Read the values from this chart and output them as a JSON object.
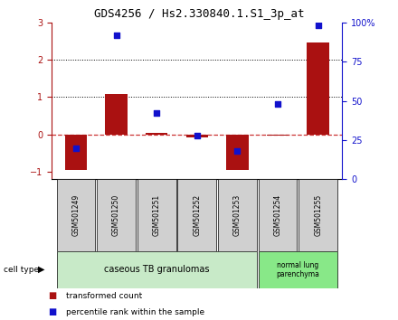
{
  "title": "GDS4256 / Hs2.330840.1.S1_3p_at",
  "samples": [
    "GSM501249",
    "GSM501250",
    "GSM501251",
    "GSM501252",
    "GSM501253",
    "GSM501254",
    "GSM501255"
  ],
  "transformed_count": [
    -0.95,
    1.08,
    0.04,
    -0.08,
    -0.95,
    -0.04,
    2.45
  ],
  "percentile_rank": [
    20,
    92,
    42,
    28,
    18,
    48,
    98
  ],
  "group1_indices": [
    0,
    1,
    2,
    3,
    4
  ],
  "group2_indices": [
    5,
    6
  ],
  "group1_label": "caseous TB granulomas",
  "group2_label": "normal lung\nparenchyma",
  "cell_type_label": "cell type",
  "ylim_left": [
    -1.2,
    3.0
  ],
  "ylim_right": [
    0,
    100
  ],
  "yticks_left": [
    -1,
    0,
    1,
    2,
    3
  ],
  "yticks_right": [
    0,
    25,
    50,
    75,
    100
  ],
  "ytick_right_labels": [
    "0",
    "25",
    "50",
    "75",
    "100%"
  ],
  "hlines_y": [
    1.0,
    2.0
  ],
  "zero_line_color": "#cc3333",
  "bar_color": "#aa1111",
  "scatter_color": "#1111cc",
  "group1_bg": "#c8eac8",
  "group2_bg": "#88e888",
  "sample_bg": "#d0d0d0",
  "legend_bar_label": "transformed count",
  "legend_scatter_label": "percentile rank within the sample",
  "title_fontsize": 9,
  "tick_fontsize": 7,
  "label_fontsize": 7,
  "sample_fontsize": 5.5,
  "group_fontsize": 7
}
